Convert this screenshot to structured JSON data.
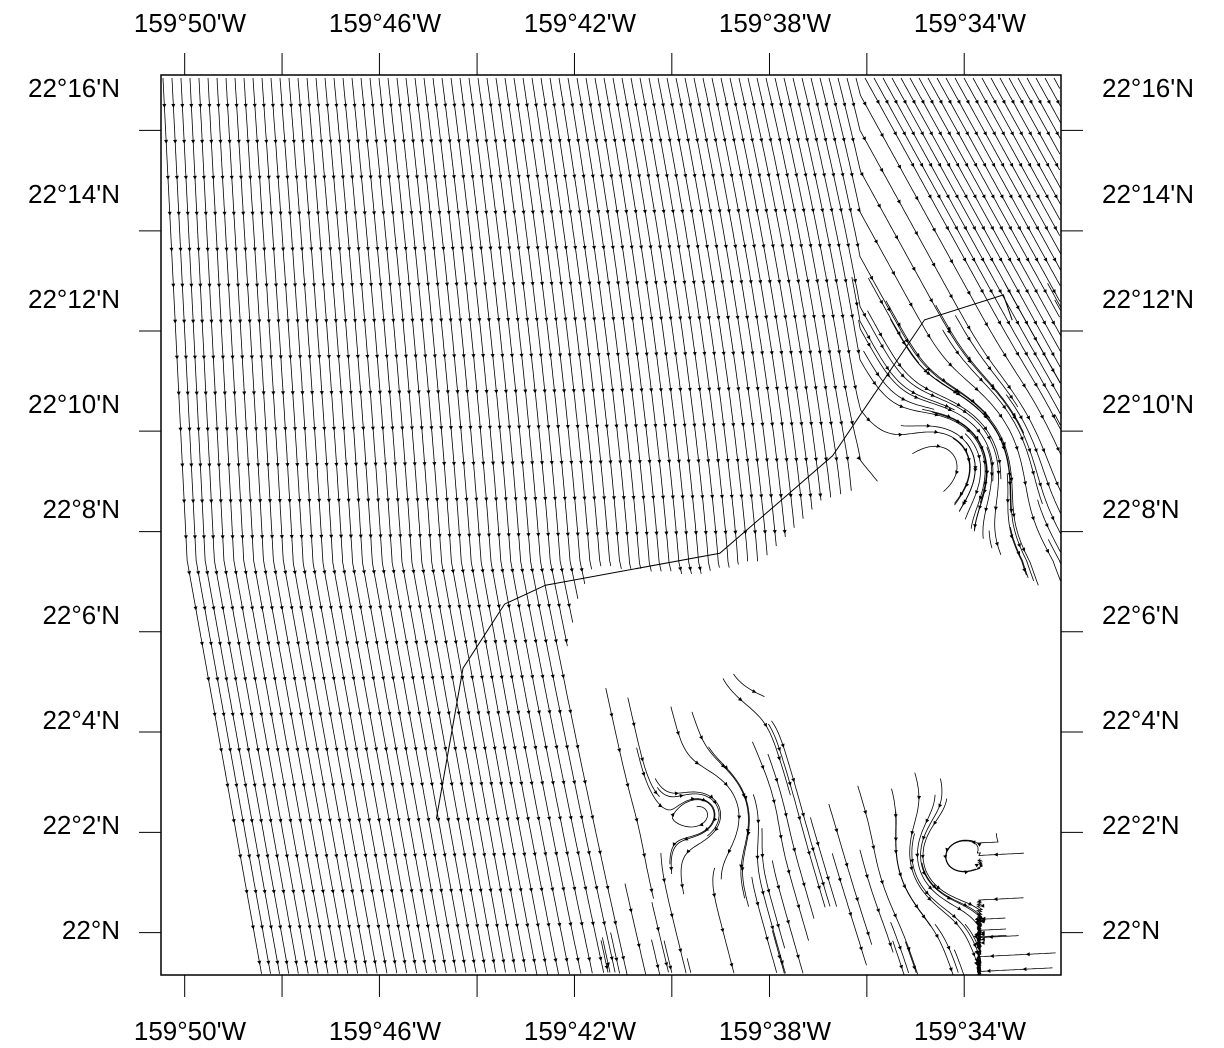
{
  "lon_labels": [
    "159°50'W",
    "159°46'W",
    "159°42'W",
    "159°38'W",
    "159°34'W"
  ],
  "lat_labels": [
    "22°16'N",
    "22°14'N",
    "22°12'N",
    "22°10'N",
    "22°8'N",
    "22°6'N",
    "22°4'N",
    "22°2'N",
    "22°N"
  ],
  "extent": {
    "lon_min": -159.8414,
    "lon_max": -159.5336,
    "lat_min": 21.9859,
    "lat_max": 22.2851
  },
  "lon_ticks_major": [
    -159.8333,
    -159.7667,
    -159.7,
    -159.6333,
    -159.5667
  ],
  "lon_ticks_minor": [
    -159.8,
    -159.7333,
    -159.6667,
    -159.6
  ],
  "lat_ticks": [
    22.2667,
    22.2333,
    22.2,
    22.1667,
    22.1333,
    22.1,
    22.0667,
    22.0333,
    22.0
  ],
  "coastline": [
    [
      -159.7472,
      22.0379
    ],
    [
      -159.7381,
      22.0879
    ],
    [
      -159.7239,
      22.1092
    ],
    [
      -159.7099,
      22.1155
    ],
    [
      -159.6503,
      22.1261
    ],
    [
      -159.6292,
      22.1438
    ],
    [
      -159.6117,
      22.1585
    ],
    [
      -159.5803,
      22.2037
    ],
    [
      -159.5533,
      22.212
    ],
    [
      -159.5503,
      22.2036
    ]
  ],
  "land_mask": [
    [
      -159.6931,
      22.1214
    ],
    [
      -159.6583,
      22.1187
    ],
    [
      -159.6353,
      22.1238
    ],
    [
      -159.617,
      22.1422
    ],
    [
      -159.5806,
      22.1552
    ],
    [
      -159.5628,
      22.1322
    ],
    [
      -159.5358,
      22.1105
    ],
    [
      -159.5336,
      22.0867
    ],
    [
      -159.5336,
      22.0345
    ],
    [
      -159.5503,
      22.0397
    ],
    [
      -159.5672,
      22.0509
    ],
    [
      -159.5992,
      22.0553
    ],
    [
      -159.6292,
      22.065
    ],
    [
      -159.6402,
      22.0913
    ],
    [
      -159.664,
      22.0937
    ],
    [
      -159.6873,
      22.0814
    ],
    [
      -159.7037,
      22.0894
    ],
    [
      -159.6978,
      22.1133
    ]
  ],
  "line_color": "#000000",
  "background_color": "#ffffff"
}
